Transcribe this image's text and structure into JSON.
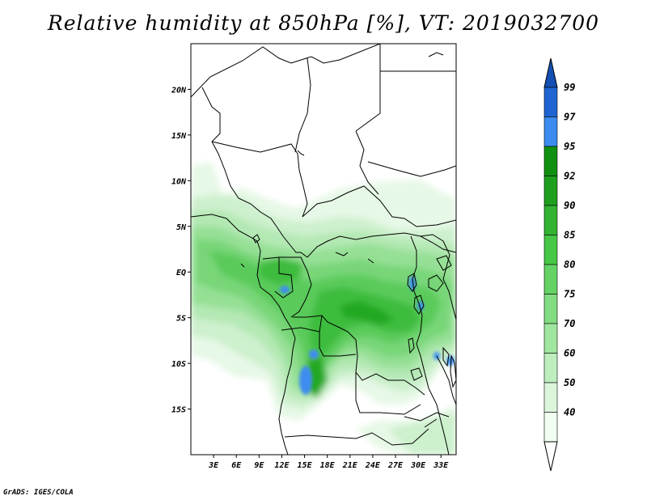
{
  "title": "Relative humidity at 850hPa [%], VT: 2019032700",
  "credit": "GrADS: IGES/COLA",
  "map": {
    "lat_ticks": [
      "20N",
      "15N",
      "10N",
      "5N",
      "EQ",
      "5S",
      "10S",
      "15S"
    ],
    "lon_ticks": [
      "3E",
      "6E",
      "9E",
      "12E",
      "15E",
      "18E",
      "21E",
      "24E",
      "27E",
      "30E",
      "33E"
    ],
    "lon_range": [
      0,
      35
    ],
    "lat_range": [
      -20,
      25
    ]
  },
  "colorbar": {
    "levels": [
      "99",
      "97",
      "95",
      "92",
      "90",
      "85",
      "80",
      "75",
      "70",
      "60",
      "50",
      "40"
    ],
    "colors": [
      "#1e64d2",
      "#3c8cf0",
      "#109010",
      "#1ea01e",
      "#32b432",
      "#46c846",
      "#64d264",
      "#82dc82",
      "#a0e6a0",
      "#beeebe",
      "#dcf6dc",
      "#f0fff0"
    ],
    "top_color": "#1450b4",
    "bottom_color": "#ffffff"
  }
}
